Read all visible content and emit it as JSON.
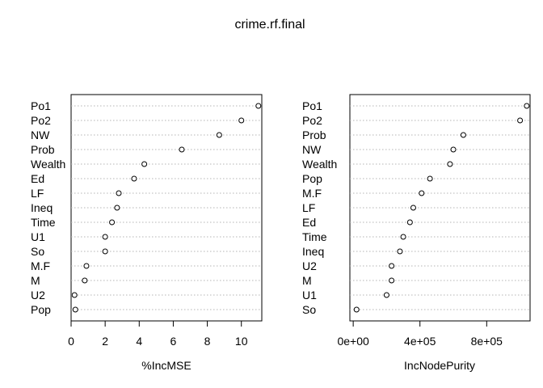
{
  "title": "crime.rf.final",
  "chart_data": [
    {
      "type": "scatter",
      "style": "dotchart",
      "xlabel": "%IncMSE",
      "xlim": [
        0,
        11.2
      ],
      "xticks": [
        0,
        2,
        4,
        6,
        8,
        10
      ],
      "xtick_labels": [
        "0",
        "2",
        "4",
        "6",
        "8",
        "10"
      ],
      "grid": "horizontal dotted",
      "categories": [
        "Po1",
        "Po2",
        "NW",
        "Prob",
        "Wealth",
        "Ed",
        "LF",
        "Ineq",
        "Time",
        "U1",
        "So",
        "M.F",
        "M",
        "U2",
        "Pop"
      ],
      "values": [
        11.0,
        10.0,
        8.7,
        6.5,
        4.3,
        3.7,
        2.8,
        2.7,
        2.4,
        2.0,
        2.0,
        0.9,
        0.8,
        0.2,
        0.25
      ]
    },
    {
      "type": "scatter",
      "style": "dotchart",
      "xlabel": "IncNodePurity",
      "xlim": [
        -20000,
        1060000
      ],
      "xticks": [
        0,
        400000,
        800000
      ],
      "xtick_labels": [
        "0e+00",
        "4e+05",
        "8e+05"
      ],
      "grid": "horizontal dotted",
      "categories": [
        "Po1",
        "Po2",
        "Prob",
        "NW",
        "Wealth",
        "Pop",
        "M.F",
        "LF",
        "Ed",
        "Time",
        "Ineq",
        "U2",
        "M",
        "U1",
        "So"
      ],
      "values": [
        1040000,
        1000000,
        660000,
        600000,
        580000,
        460000,
        410000,
        360000,
        340000,
        300000,
        280000,
        230000,
        230000,
        200000,
        20000
      ]
    }
  ]
}
